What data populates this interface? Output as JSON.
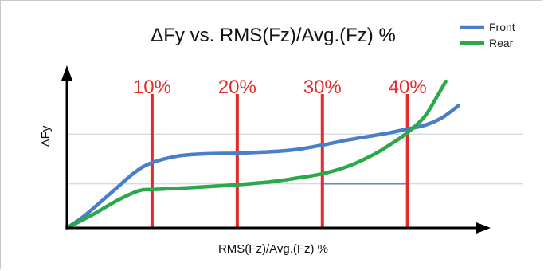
{
  "chart_data": {
    "type": "line",
    "title": "ΔFy vs. RMS(Fz)/Avg.(Fz) %",
    "xlabel": "RMS(Fz)/Avg.(Fz) %",
    "ylabel": "ΔFy",
    "xlim": [
      0,
      52
    ],
    "ylim": [
      0,
      10
    ],
    "grid": false,
    "legend_position": "top-right",
    "reference_lines": [
      {
        "x": 10,
        "label": "10%"
      },
      {
        "x": 20,
        "label": "20%"
      },
      {
        "x": 30,
        "label": "30%"
      },
      {
        "x": 40,
        "label": "40%"
      }
    ],
    "horizontal_guides": [
      {
        "y": 6.4
      },
      {
        "y": 3.0
      }
    ],
    "connector": {
      "x1": 30,
      "x2": 40,
      "y": 3.0
    },
    "series": [
      {
        "name": "Front",
        "color": "#4a7ec8",
        "points": [
          [
            0,
            0
          ],
          [
            2,
            0.8
          ],
          [
            5,
            2.3
          ],
          [
            8,
            3.8
          ],
          [
            10,
            4.45
          ],
          [
            13,
            4.9
          ],
          [
            16,
            5.05
          ],
          [
            20,
            5.1
          ],
          [
            24,
            5.2
          ],
          [
            27,
            5.35
          ],
          [
            30,
            5.65
          ],
          [
            33,
            6.0
          ],
          [
            36,
            6.3
          ],
          [
            38,
            6.5
          ],
          [
            40,
            6.75
          ],
          [
            42,
            7.0
          ],
          [
            44,
            7.5
          ],
          [
            46,
            8.35
          ]
        ]
      },
      {
        "name": "Rear",
        "color": "#2aa84a",
        "points": [
          [
            0,
            0
          ],
          [
            3,
            0.9
          ],
          [
            6,
            1.9
          ],
          [
            8.5,
            2.55
          ],
          [
            10,
            2.62
          ],
          [
            13,
            2.7
          ],
          [
            16,
            2.8
          ],
          [
            20,
            2.95
          ],
          [
            24,
            3.15
          ],
          [
            27,
            3.4
          ],
          [
            30,
            3.7
          ],
          [
            33,
            4.2
          ],
          [
            36,
            5.0
          ],
          [
            38,
            5.7
          ],
          [
            40,
            6.5
          ],
          [
            42,
            7.6
          ],
          [
            43.5,
            9.0
          ],
          [
            44.5,
            10.0
          ]
        ]
      }
    ]
  }
}
